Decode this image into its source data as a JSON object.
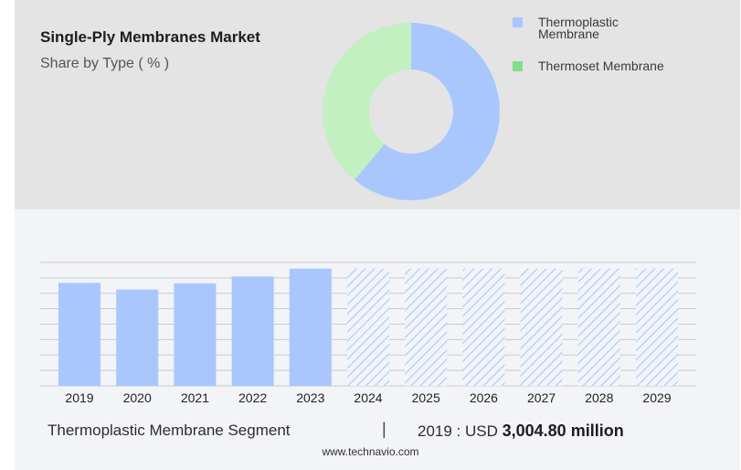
{
  "header": {
    "title": "Single-Ply Membranes Market",
    "subtitle": "Share by Type ( % )"
  },
  "legend": [
    {
      "label_line1": "Thermoplastic",
      "label_line2": "Membrane",
      "color": "#a9c7fd"
    },
    {
      "label_line1": "Thermoset Membrane",
      "label_line2": "",
      "color": "#7ee08c"
    }
  ],
  "footer": {
    "segment": "Thermoplastic Membrane Segment",
    "divider": "|",
    "year_prefix": "2019 : USD",
    "value": "3,004.80 million",
    "source": "www.technavio.com"
  },
  "chart_data": [
    {
      "type": "pie",
      "variant": "donut",
      "labels": [
        "Thermoplastic Membrane",
        "Thermoset Membrane"
      ],
      "values": [
        61,
        39
      ],
      "colors": [
        "#a9c7fd",
        "#c2f0c1"
      ]
    },
    {
      "type": "bar",
      "categories": [
        "2019",
        "2020",
        "2021",
        "2022",
        "2023",
        "2024",
        "2025",
        "2026",
        "2027",
        "2028",
        "2029"
      ],
      "values": [
        3004.8,
        2810,
        2990,
        3190,
        3420,
        3420,
        3420,
        3420,
        3420,
        3420,
        3420
      ],
      "forecast_from": "2024",
      "ylim": [
        0,
        3600
      ],
      "grid": true,
      "bar_color": "#a9c7fd",
      "forecast_style": "hatched"
    }
  ]
}
